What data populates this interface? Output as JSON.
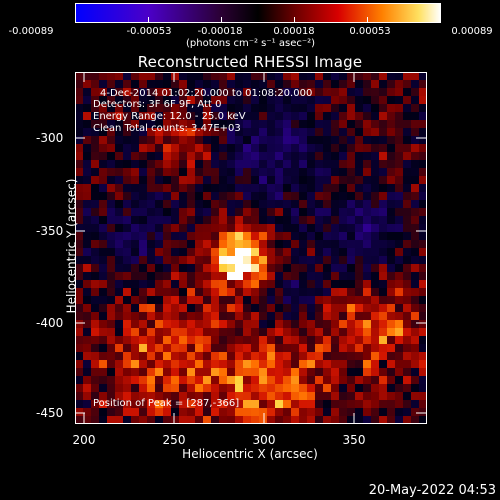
{
  "colorbar": {
    "ticks": [
      "-0.00089",
      "-0.00053",
      "-0.00018",
      "0.00018",
      "0.00053",
      "0.00089"
    ],
    "units": "(photons cm⁻² s⁻¹ asec⁻²)"
  },
  "plot": {
    "title": "Reconstructed RHESSI Image",
    "xlabel": "Heliocentric X (arcsec)",
    "ylabel": "Heliocentric Y (arcsec)",
    "xticks": [
      "200",
      "250",
      "300",
      "350"
    ],
    "yticks": [
      "-300",
      "-350",
      "-400",
      "-450"
    ],
    "xlim": [
      197,
      385
    ],
    "ylim": [
      -456,
      -271
    ]
  },
  "info": {
    "time": "4-Dec-2014 01:02:20.000 to 01:08:20.000",
    "detectors": "Detectors: 3F 6F 9F, Att 0",
    "energy": "Energy Range: 12.0 - 25.0 keV",
    "clean": "Clean     Total counts: 3.47E+03",
    "peak": "Position of Peak = [287,-366]"
  },
  "footer": {
    "date": "20-May-2022 04:53"
  }
}
